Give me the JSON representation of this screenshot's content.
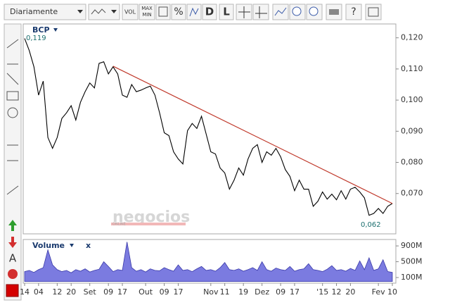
{
  "toolbar": {
    "period": "Diariamente",
    "vol": "VOL",
    "max": "MAX",
    "min": "MIN",
    "percent": "%",
    "d": "D",
    "l": "L",
    "help": "?",
    "text_tool": "A"
  },
  "watermark": {
    "brand": "negocios",
    "sub": "ONLINE"
  },
  "chart_data": [
    {
      "type": "line",
      "title": "BCP",
      "color": "#000000",
      "categories": [
        "14",
        null,
        null,
        "04",
        null,
        null,
        null,
        "12",
        null,
        null,
        "20",
        null,
        null,
        null,
        "Set",
        null,
        null,
        null,
        "09",
        null,
        null,
        "17",
        null,
        null,
        null,
        null,
        "Out",
        null,
        null,
        null,
        "09",
        null,
        null,
        "17",
        null,
        null,
        null,
        null,
        null,
        null,
        "Nov",
        null,
        null,
        "11",
        null,
        null,
        null,
        "19",
        null,
        null,
        null,
        "Dez",
        null,
        null,
        null,
        "09",
        null,
        null,
        "17",
        null,
        null,
        null,
        null,
        null,
        "'15",
        null,
        null,
        "12",
        null,
        null,
        "20",
        null,
        null,
        null,
        null,
        null,
        "Fev",
        null,
        null,
        "10"
      ],
      "values": [
        0.1198,
        0.1159,
        0.1107,
        0.1016,
        0.1061,
        0.088,
        0.0845,
        0.088,
        0.0941,
        0.0959,
        0.0982,
        0.0936,
        0.0993,
        0.1027,
        0.1055,
        0.1039,
        0.1118,
        0.1123,
        0.1084,
        0.1107,
        0.1084,
        0.1016,
        0.1009,
        0.105,
        0.1027,
        0.1032,
        0.1039,
        0.1045,
        0.1016,
        0.0959,
        0.0895,
        0.0886,
        0.0834,
        0.0811,
        0.0795,
        0.0902,
        0.0925,
        0.0909,
        0.0948,
        0.0891,
        0.0834,
        0.0827,
        0.0782,
        0.0766,
        0.0714,
        0.0743,
        0.0782,
        0.0759,
        0.0811,
        0.0845,
        0.0857,
        0.08,
        0.0834,
        0.0823,
        0.0845,
        0.0818,
        0.0777,
        0.0755,
        0.0709,
        0.0743,
        0.0714,
        0.0714,
        0.0659,
        0.0675,
        0.0705,
        0.0682,
        0.0698,
        0.068,
        0.0709,
        0.0682,
        0.0714,
        0.072,
        0.0705,
        0.0686,
        0.063,
        0.0636,
        0.0652,
        0.0636,
        0.0659,
        0.0668
      ],
      "ylim": [
        0.0575,
        0.124
      ],
      "yticks": [
        {
          "value": 0.07,
          "label": "0,070"
        },
        {
          "value": 0.08,
          "label": "0,080"
        },
        {
          "value": 0.09,
          "label": "0,090"
        },
        {
          "value": 0.1,
          "label": "0,100"
        },
        {
          "value": 0.11,
          "label": "0,110"
        },
        {
          "value": 0.12,
          "label": "0,120"
        }
      ],
      "annotations": [
        {
          "text": "0,119"
        },
        {
          "text": "0,062"
        }
      ],
      "trendline": {
        "x": [
          19,
          79
        ],
        "values": [
          0.1109,
          0.0668
        ],
        "color": "#c0392b"
      },
      "grid": false
    },
    {
      "type": "area",
      "title": "Volume",
      "close": "x",
      "color": "#7b7be0",
      "values": [
        250,
        280,
        230,
        300,
        350,
        800,
        420,
        300,
        250,
        280,
        220,
        300,
        260,
        320,
        240,
        280,
        310,
        500,
        380,
        250,
        300,
        280,
        1000,
        350,
        260,
        300,
        240,
        320,
        280,
        270,
        350,
        300,
        260,
        420,
        280,
        300,
        250,
        320,
        380,
        280,
        300,
        260,
        350,
        480,
        300,
        280,
        320,
        260,
        300,
        350,
        280,
        500,
        300,
        260,
        340,
        300,
        280,
        380,
        260,
        300,
        320,
        450,
        300,
        280,
        250,
        310,
        400,
        280,
        300,
        260,
        330,
        280,
        520,
        300,
        600,
        280,
        320,
        550,
        250,
        230
      ],
      "ylim": [
        0,
        1000
      ],
      "yticks": [
        {
          "value": 100,
          "label": "100M"
        },
        {
          "value": 500,
          "label": "500M"
        },
        {
          "value": 900,
          "label": "900M"
        }
      ],
      "grid": false
    }
  ]
}
